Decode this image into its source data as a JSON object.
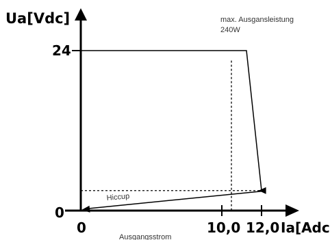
{
  "chart_data": {
    "type": "line",
    "ylabel": "Ua[Vdc]",
    "xlabel": "Ia[Adc]",
    "xlabel_below": "Ausgangsstrom",
    "x_ticks": [
      "0",
      "10,0",
      "12,0"
    ],
    "y_ticks": [
      "0",
      "24"
    ],
    "xlim": [
      0,
      14.6
    ],
    "ylim": [
      0,
      31.5
    ],
    "annotation": {
      "line1": "max. Ausgansleistung",
      "line2": "240W"
    },
    "hiccup_label": "Hiccup",
    "series": [
      {
        "style": "solid",
        "x": [
          0,
          11.0,
          12.0,
          11.8
        ],
        "y": [
          24,
          24,
          3,
          3
        ]
      },
      {
        "style": "solid",
        "x": [
          0.05,
          12.0
        ],
        "y": [
          0.1,
          2.9
        ]
      }
    ],
    "reference_lines": [
      {
        "orientation": "vertical",
        "x": 10.0,
        "y_from": 0,
        "y_to": 22.5,
        "style": "dotted"
      },
      {
        "orientation": "horizontal",
        "y": 3.0,
        "x_from": 0,
        "x_to": 11.8,
        "style": "dotted"
      }
    ],
    "grid": false
  }
}
